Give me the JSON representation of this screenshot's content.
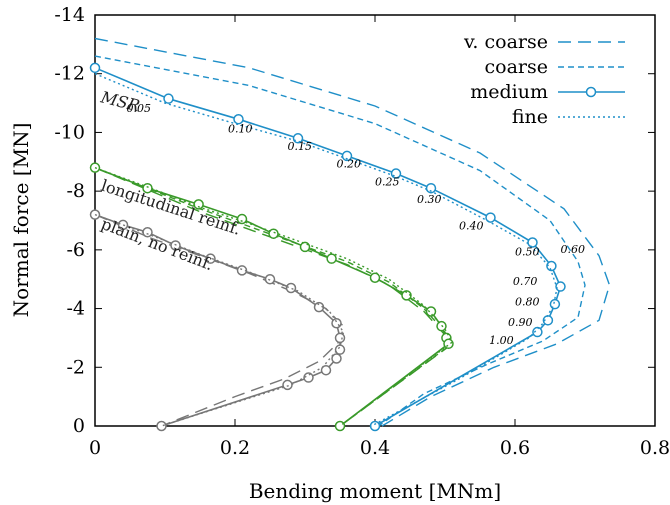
{
  "chart_data": {
    "type": "line",
    "xlabel": "Bending moment [MNm]",
    "ylabel": "Normal force [MN]",
    "xlim": [
      0,
      0.8
    ],
    "ylim": [
      0,
      -14
    ],
    "xticks": [
      "0",
      "0.2",
      "0.4",
      "0.6",
      "0.8"
    ],
    "yticks": [
      "0",
      "-2",
      "-4",
      "-6",
      "-8",
      "-10",
      "-12",
      "-14"
    ],
    "grid": false,
    "legend": {
      "position": "top-right",
      "entries": [
        {
          "label": "v. coarse",
          "style": "long-dash"
        },
        {
          "label": "coarse",
          "style": "short-dash"
        },
        {
          "label": "medium",
          "style": "solid-circle"
        },
        {
          "label": "fine",
          "style": "dotted"
        }
      ]
    },
    "colors": {
      "reinforced": "#1f8fc8",
      "longitudinal": "#3a9a2a",
      "plain": "#777777"
    },
    "annotations": {
      "msr_title": "MSR",
      "longitudinal": "longitudinal reinf.",
      "plain": "plain, no reinf."
    },
    "msr_labels": [
      {
        "text": "0.05",
        "x": 0.045,
        "y": -10.7
      },
      {
        "text": "0.10",
        "x": 0.19,
        "y": -10.0
      },
      {
        "text": "0.15",
        "x": 0.275,
        "y": -9.4
      },
      {
        "text": "0.20",
        "x": 0.345,
        "y": -8.8
      },
      {
        "text": "0.25",
        "x": 0.4,
        "y": -8.2
      },
      {
        "text": "0.30",
        "x": 0.46,
        "y": -7.6
      },
      {
        "text": "0.40",
        "x": 0.52,
        "y": -6.7
      },
      {
        "text": "0.50",
        "x": 0.6,
        "y": -5.8
      },
      {
        "text": "0.60",
        "x": 0.665,
        "y": -5.9
      },
      {
        "text": "0.70",
        "x": 0.597,
        "y": -4.8
      },
      {
        "text": "0.80",
        "x": 0.6,
        "y": -4.1
      },
      {
        "text": "0.90",
        "x": 0.59,
        "y": -3.4
      },
      {
        "text": "1.00",
        "x": 0.563,
        "y": -2.8
      }
    ],
    "series": [
      {
        "name": "v. coarse",
        "group": "reinforced",
        "style": "long-dash",
        "x": [
          0,
          0.22,
          0.4,
          0.55,
          0.67,
          0.72,
          0.735,
          0.72,
          0.66,
          0.57,
          0.48,
          0.41
        ],
        "y": [
          -13.2,
          -12.2,
          -10.9,
          -9.3,
          -7.4,
          -5.8,
          -4.8,
          -3.6,
          -2.8,
          -2.0,
          -1.0,
          0
        ]
      },
      {
        "name": "coarse",
        "group": "reinforced",
        "style": "short-dash",
        "x": [
          0,
          0.22,
          0.4,
          0.55,
          0.65,
          0.69,
          0.7,
          0.69,
          0.64,
          0.56,
          0.47,
          0.405
        ],
        "y": [
          -12.6,
          -11.6,
          -10.3,
          -8.7,
          -7.0,
          -5.6,
          -4.8,
          -3.7,
          -2.9,
          -2.1,
          -1.1,
          0
        ]
      },
      {
        "name": "medium",
        "group": "reinforced",
        "style": "solid",
        "x": [
          0,
          0.105,
          0.205,
          0.29,
          0.36,
          0.43,
          0.48,
          0.565,
          0.625,
          0.652,
          0.665,
          0.657,
          0.647,
          0.632,
          0.4
        ],
        "y": [
          -12.2,
          -11.15,
          -10.45,
          -9.8,
          -9.2,
          -8.6,
          -8.1,
          -7.1,
          -6.25,
          -5.45,
          -4.75,
          -4.15,
          -3.6,
          -3.2,
          0
        ]
      },
      {
        "name": "fine",
        "group": "reinforced",
        "style": "dotted",
        "x": [
          0,
          0.1,
          0.2,
          0.29,
          0.36,
          0.43,
          0.48,
          0.56,
          0.62,
          0.65,
          0.66,
          0.655,
          0.64,
          0.62,
          0.52,
          0.395
        ],
        "y": [
          -12.0,
          -11.0,
          -10.3,
          -9.7,
          -9.1,
          -8.5,
          -8.0,
          -7.0,
          -6.2,
          -5.4,
          -4.7,
          -4.1,
          -3.5,
          -3.0,
          -1.6,
          0
        ]
      },
      {
        "name": "",
        "group": "longitudinal",
        "style": "long-dash",
        "x": [
          0,
          0.08,
          0.15,
          0.22,
          0.29,
          0.36,
          0.42,
          0.47,
          0.5,
          0.505,
          0.35
        ],
        "y": [
          -8.8,
          -8.0,
          -7.3,
          -6.7,
          -6.1,
          -5.5,
          -4.8,
          -3.9,
          -3.1,
          -2.7,
          0
        ]
      },
      {
        "name": "",
        "group": "longitudinal",
        "style": "short-dash",
        "x": [
          0,
          0.08,
          0.15,
          0.22,
          0.29,
          0.36,
          0.42,
          0.47,
          0.5,
          0.507,
          0.35
        ],
        "y": [
          -8.8,
          -8.05,
          -7.4,
          -6.8,
          -6.2,
          -5.6,
          -4.9,
          -4.0,
          -3.2,
          -2.75,
          0
        ]
      },
      {
        "name": "",
        "group": "longitudinal",
        "style": "solid",
        "x": [
          0,
          0.075,
          0.148,
          0.21,
          0.255,
          0.3,
          0.338,
          0.4,
          0.445,
          0.48,
          0.495,
          0.502,
          0.505,
          0.35
        ],
        "y": [
          -8.8,
          -8.1,
          -7.55,
          -7.05,
          -6.55,
          -6.1,
          -5.7,
          -5.05,
          -4.45,
          -3.9,
          -3.4,
          -3.0,
          -2.8,
          0
        ]
      },
      {
        "name": "",
        "group": "longitudinal",
        "style": "dotted",
        "x": [
          0,
          0.08,
          0.15,
          0.22,
          0.29,
          0.36,
          0.42,
          0.47,
          0.5,
          0.51,
          0.35
        ],
        "y": [
          -8.8,
          -8.1,
          -7.45,
          -6.9,
          -6.3,
          -5.7,
          -5.0,
          -4.1,
          -3.3,
          -2.85,
          0
        ]
      },
      {
        "name": "",
        "group": "plain",
        "style": "long-dash",
        "x": [
          0,
          0.08,
          0.15,
          0.22,
          0.28,
          0.33,
          0.355,
          0.35,
          0.32,
          0.27,
          0.2,
          0.095
        ],
        "y": [
          -7.2,
          -6.4,
          -5.8,
          -5.2,
          -4.6,
          -4.0,
          -3.4,
          -2.9,
          -2.2,
          -1.6,
          -1.0,
          0
        ]
      },
      {
        "name": "",
        "group": "plain",
        "style": "solid",
        "x": [
          0,
          0.04,
          0.075,
          0.115,
          0.165,
          0.21,
          0.25,
          0.28,
          0.32,
          0.345,
          0.35,
          0.35,
          0.345,
          0.33,
          0.305,
          0.275,
          0.095
        ],
        "y": [
          -7.2,
          -6.85,
          -6.6,
          -6.15,
          -5.7,
          -5.3,
          -5.0,
          -4.7,
          -4.05,
          -3.5,
          -3.0,
          -2.6,
          -2.3,
          -1.9,
          -1.65,
          -1.4,
          0
        ]
      },
      {
        "name": "",
        "group": "plain",
        "style": "dotted",
        "x": [
          0,
          0.08,
          0.15,
          0.22,
          0.29,
          0.335,
          0.355,
          0.35,
          0.325,
          0.28,
          0.095
        ],
        "y": [
          -7.2,
          -6.5,
          -5.85,
          -5.25,
          -4.6,
          -3.9,
          -3.2,
          -2.7,
          -2.0,
          -1.4,
          0
        ]
      }
    ]
  }
}
